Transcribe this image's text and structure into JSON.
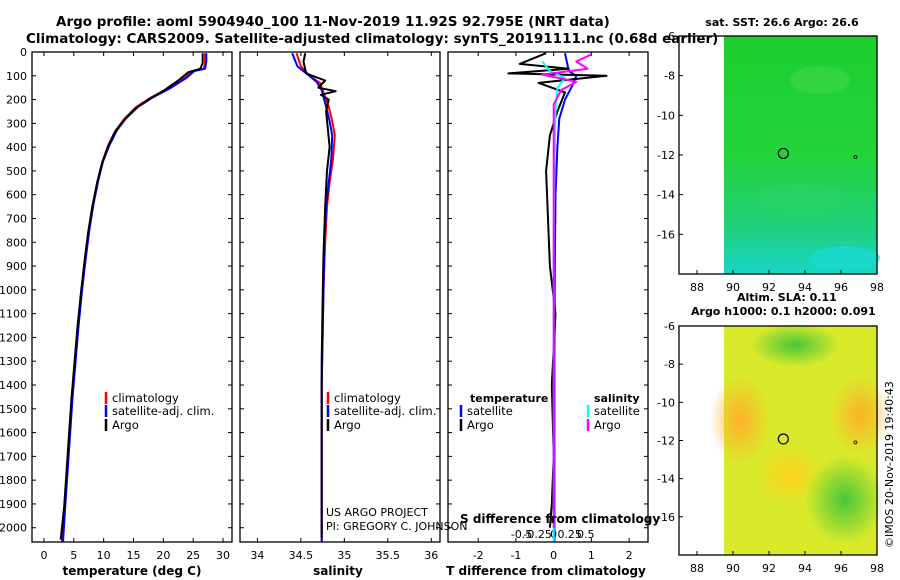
{
  "title": {
    "line1": "Argo profile: aoml 5904940_100 11-Nov-2019 11.92S 92.795E (NRT data)",
    "line2": "Climatology: CARS2009. Satellite-adjusted climatology: synTS_20191111.nc (0.68d earlier)"
  },
  "colors": {
    "climatology": "#ff0000",
    "satellite": "#0000ff",
    "argo": "#000000",
    "sat_salinity": "#00ffff",
    "argo_salinity": "#ff00ff"
  },
  "chart_data": [
    {
      "type": "line",
      "name": "temperature-profile",
      "xlabel": "temperature (deg C)",
      "xlim": [
        -2,
        31.5
      ],
      "ylim": [
        2060,
        0
      ],
      "xticks": [
        0,
        5,
        10,
        15,
        20,
        25,
        30
      ],
      "yticks": [
        0,
        100,
        200,
        300,
        400,
        500,
        600,
        700,
        800,
        900,
        1000,
        1100,
        1200,
        1300,
        1400,
        1500,
        1600,
        1700,
        1800,
        1900,
        2000
      ],
      "legend": [
        "climatology",
        "satellite-adj. clim.",
        "Argo"
      ],
      "series": [
        {
          "name": "climatology",
          "color": "#ff0000",
          "points": [
            [
              27.0,
              5
            ],
            [
              27.0,
              40
            ],
            [
              26.8,
              70
            ],
            [
              25.0,
              80
            ],
            [
              23.5,
              110
            ],
            [
              21.0,
              150
            ],
            [
              18.0,
              190
            ],
            [
              15.5,
              230
            ],
            [
              13.5,
              280
            ],
            [
              12.0,
              330
            ],
            [
              10.8,
              390
            ],
            [
              9.8,
              460
            ],
            [
              9.0,
              540
            ],
            [
              8.2,
              640
            ],
            [
              7.5,
              750
            ],
            [
              6.9,
              870
            ],
            [
              6.3,
              1000
            ],
            [
              5.7,
              1150
            ],
            [
              5.2,
              1300
            ],
            [
              4.7,
              1450
            ],
            [
              4.3,
              1600
            ],
            [
              3.9,
              1750
            ],
            [
              3.5,
              1900
            ],
            [
              3.0,
              2060
            ]
          ]
        },
        {
          "name": "satellite-adj. clim.",
          "color": "#0000ff",
          "points": [
            [
              27.2,
              5
            ],
            [
              27.2,
              40
            ],
            [
              27.0,
              70
            ],
            [
              25.2,
              80
            ],
            [
              23.8,
              110
            ],
            [
              21.3,
              150
            ],
            [
              18.3,
              190
            ],
            [
              15.8,
              230
            ],
            [
              13.7,
              280
            ],
            [
              12.2,
              330
            ],
            [
              11.0,
              390
            ],
            [
              9.9,
              460
            ],
            [
              9.1,
              540
            ],
            [
              8.3,
              640
            ],
            [
              7.6,
              750
            ],
            [
              7.0,
              870
            ],
            [
              6.4,
              1000
            ],
            [
              5.8,
              1150
            ],
            [
              5.3,
              1300
            ],
            [
              4.8,
              1450
            ],
            [
              4.4,
              1600
            ],
            [
              4.0,
              1750
            ],
            [
              3.6,
              1900
            ],
            [
              3.2,
              2060
            ]
          ]
        },
        {
          "name": "Argo",
          "color": "#000000",
          "points": [
            [
              26.6,
              5
            ],
            [
              26.6,
              45
            ],
            [
              26.2,
              70
            ],
            [
              24.2,
              85
            ],
            [
              22.5,
              120
            ],
            [
              20.2,
              160
            ],
            [
              17.5,
              200
            ],
            [
              15.2,
              240
            ],
            [
              13.3,
              290
            ],
            [
              11.8,
              340
            ],
            [
              10.7,
              400
            ],
            [
              9.7,
              470
            ],
            [
              8.9,
              550
            ],
            [
              8.1,
              650
            ],
            [
              7.4,
              760
            ],
            [
              6.8,
              880
            ],
            [
              6.2,
              1010
            ],
            [
              5.6,
              1160
            ],
            [
              5.1,
              1310
            ],
            [
              4.6,
              1460
            ],
            [
              4.2,
              1610
            ],
            [
              3.8,
              1760
            ],
            [
              3.4,
              1910
            ],
            [
              2.8,
              2050
            ]
          ]
        }
      ]
    },
    {
      "type": "line",
      "name": "salinity-profile",
      "xlabel": "salinity",
      "xlim": [
        33.8,
        36.1
      ],
      "ylim": [
        2060,
        0
      ],
      "xticks": [
        34,
        34.5,
        35,
        35.5,
        36
      ],
      "xticklabels": [
        "34",
        "34.5",
        "35",
        "35.5",
        "36"
      ],
      "legend": [
        "climatology",
        "satellite-adj. clim.",
        "Argo"
      ],
      "series": [
        {
          "name": "climatology",
          "color": "#ff0000",
          "points": [
            [
              34.45,
              5
            ],
            [
              34.5,
              60
            ],
            [
              34.6,
              100
            ],
            [
              34.72,
              130
            ],
            [
              34.76,
              170
            ],
            [
              34.82,
              230
            ],
            [
              34.86,
              290
            ],
            [
              34.89,
              350
            ],
            [
              34.87,
              450
            ],
            [
              34.83,
              550
            ],
            [
              34.8,
              650
            ],
            [
              34.78,
              800
            ],
            [
              34.76,
              1000
            ],
            [
              34.75,
              1200
            ],
            [
              34.74,
              1400
            ],
            [
              34.74,
              1600
            ],
            [
              34.74,
              1800
            ],
            [
              34.74,
              2060
            ]
          ]
        },
        {
          "name": "satellite-adj. clim.",
          "color": "#0000ff",
          "points": [
            [
              34.4,
              5
            ],
            [
              34.46,
              60
            ],
            [
              34.58,
              95
            ],
            [
              34.68,
              125
            ],
            [
              34.74,
              160
            ],
            [
              34.79,
              230
            ],
            [
              34.83,
              290
            ],
            [
              34.86,
              350
            ],
            [
              34.85,
              450
            ],
            [
              34.82,
              550
            ],
            [
              34.79,
              650
            ],
            [
              34.77,
              800
            ],
            [
              34.76,
              1000
            ],
            [
              34.75,
              1200
            ],
            [
              34.74,
              1400
            ],
            [
              34.74,
              1600
            ],
            [
              34.74,
              1800
            ],
            [
              34.74,
              2060
            ]
          ]
        },
        {
          "name": "Argo",
          "color": "#000000",
          "points": [
            [
              34.55,
              5
            ],
            [
              34.53,
              40
            ],
            [
              34.56,
              90
            ],
            [
              34.78,
              120
            ],
            [
              34.7,
              150
            ],
            [
              34.9,
              165
            ],
            [
              34.73,
              180
            ],
            [
              34.82,
              200
            ],
            [
              34.79,
              250
            ],
            [
              34.81,
              320
            ],
            [
              34.83,
              400
            ],
            [
              34.8,
              500
            ],
            [
              34.78,
              650
            ],
            [
              34.76,
              850
            ],
            [
              34.75,
              1050
            ],
            [
              34.74,
              1300
            ],
            [
              34.74,
              1600
            ],
            [
              34.74,
              1900
            ],
            [
              34.74,
              2040
            ]
          ]
        }
      ]
    },
    {
      "type": "line",
      "name": "difference-profile",
      "xlabel": "T difference from climatology",
      "xlabel2": "S difference from climatology",
      "xlim": [
        -2.8,
        2.5
      ],
      "ylim": [
        2060,
        0
      ],
      "xticks": [
        -2,
        -1,
        0,
        1,
        2
      ],
      "s_xticks": [
        -0.5,
        -0.25,
        0,
        0.25,
        0.5
      ],
      "s_xticklabels": [
        "-0.5",
        "-0.25",
        "0",
        "0.25",
        "0.5"
      ],
      "legend_left_title": "temperature",
      "legend_right_title": "salinity",
      "legend_left": [
        "satellite",
        "Argo"
      ],
      "legend_right": [
        "satellite",
        "Argo"
      ],
      "series": [
        {
          "name": "T satellite",
          "color": "#0000ff",
          "points": [
            [
              0.3,
              5
            ],
            [
              0.4,
              80
            ],
            [
              0.6,
              100
            ],
            [
              0.5,
              140
            ],
            [
              0.3,
              200
            ],
            [
              0.15,
              280
            ],
            [
              0.1,
              400
            ],
            [
              0.05,
              600
            ],
            [
              0.03,
              900
            ],
            [
              0.02,
              1300
            ],
            [
              0.02,
              1700
            ],
            [
              0.02,
              2060
            ]
          ]
        },
        {
          "name": "T Argo",
          "color": "#000000",
          "points": [
            [
              -0.2,
              5
            ],
            [
              -0.9,
              50
            ],
            [
              0.4,
              70
            ],
            [
              -1.2,
              90
            ],
            [
              1.4,
              100
            ],
            [
              -0.4,
              130
            ],
            [
              0.3,
              170
            ],
            [
              0.1,
              250
            ],
            [
              -0.1,
              350
            ],
            [
              -0.2,
              500
            ],
            [
              -0.15,
              700
            ],
            [
              -0.1,
              900
            ],
            [
              0.05,
              1100
            ],
            [
              -0.05,
              1400
            ],
            [
              0.0,
              1700
            ],
            [
              -0.05,
              1900
            ],
            [
              -0.1,
              2000
            ]
          ]
        },
        {
          "name": "S satellite",
          "color": "#00ffff",
          "points": [
            [
              -0.3,
              40
            ],
            [
              -0.1,
              80
            ],
            [
              0.3,
              110
            ],
            [
              0.1,
              150
            ],
            [
              0.05,
              250
            ],
            [
              0.02,
              500
            ],
            [
              0.0,
              800
            ],
            [
              0.0,
              1200
            ],
            [
              0.0,
              1600
            ],
            [
              0.0,
              2060
            ]
          ]
        },
        {
          "name": "S Argo",
          "color": "#ff00ff",
          "points": [
            [
              1.0,
              10
            ],
            [
              0.6,
              40
            ],
            [
              0.9,
              70
            ],
            [
              -0.3,
              95
            ],
            [
              0.6,
              125
            ],
            [
              0.2,
              160
            ],
            [
              0.0,
              220
            ],
            [
              0.0,
              400
            ],
            [
              0.0,
              800
            ],
            [
              0.0,
              1400
            ],
            [
              0.0,
              2000
            ]
          ]
        }
      ]
    },
    {
      "type": "heatmap",
      "name": "sst-map",
      "title": "sat. SST: 26.6 Argo: 26.6",
      "xlim": [
        87,
        98
      ],
      "ylim": [
        -18,
        -6
      ],
      "xticks": [
        88,
        90,
        92,
        94,
        96,
        98
      ],
      "yticks": [
        -6,
        -8,
        -10,
        -12,
        -14,
        -16
      ],
      "profile_lon": 92.795,
      "profile_lat": -11.92
    },
    {
      "type": "heatmap",
      "name": "sla-map",
      "title": "Altim. SLA: 0.11",
      "subtitle": "Argo h1000: 0.1 h2000: 0.091",
      "xlim": [
        87,
        98
      ],
      "ylim": [
        -18,
        -6
      ],
      "xticks": [
        88,
        90,
        92,
        94,
        96,
        98
      ],
      "yticks": [
        -6,
        -8,
        -10,
        -12,
        -14,
        -16
      ],
      "profile_lon": 92.795,
      "profile_lat": -11.92
    }
  ],
  "credit": {
    "line1": "US ARGO PROJECT",
    "line2": "PI: GREGORY C. JOHNSON"
  },
  "watermark": "©IMOS 20-Nov-2019 19:40:43"
}
